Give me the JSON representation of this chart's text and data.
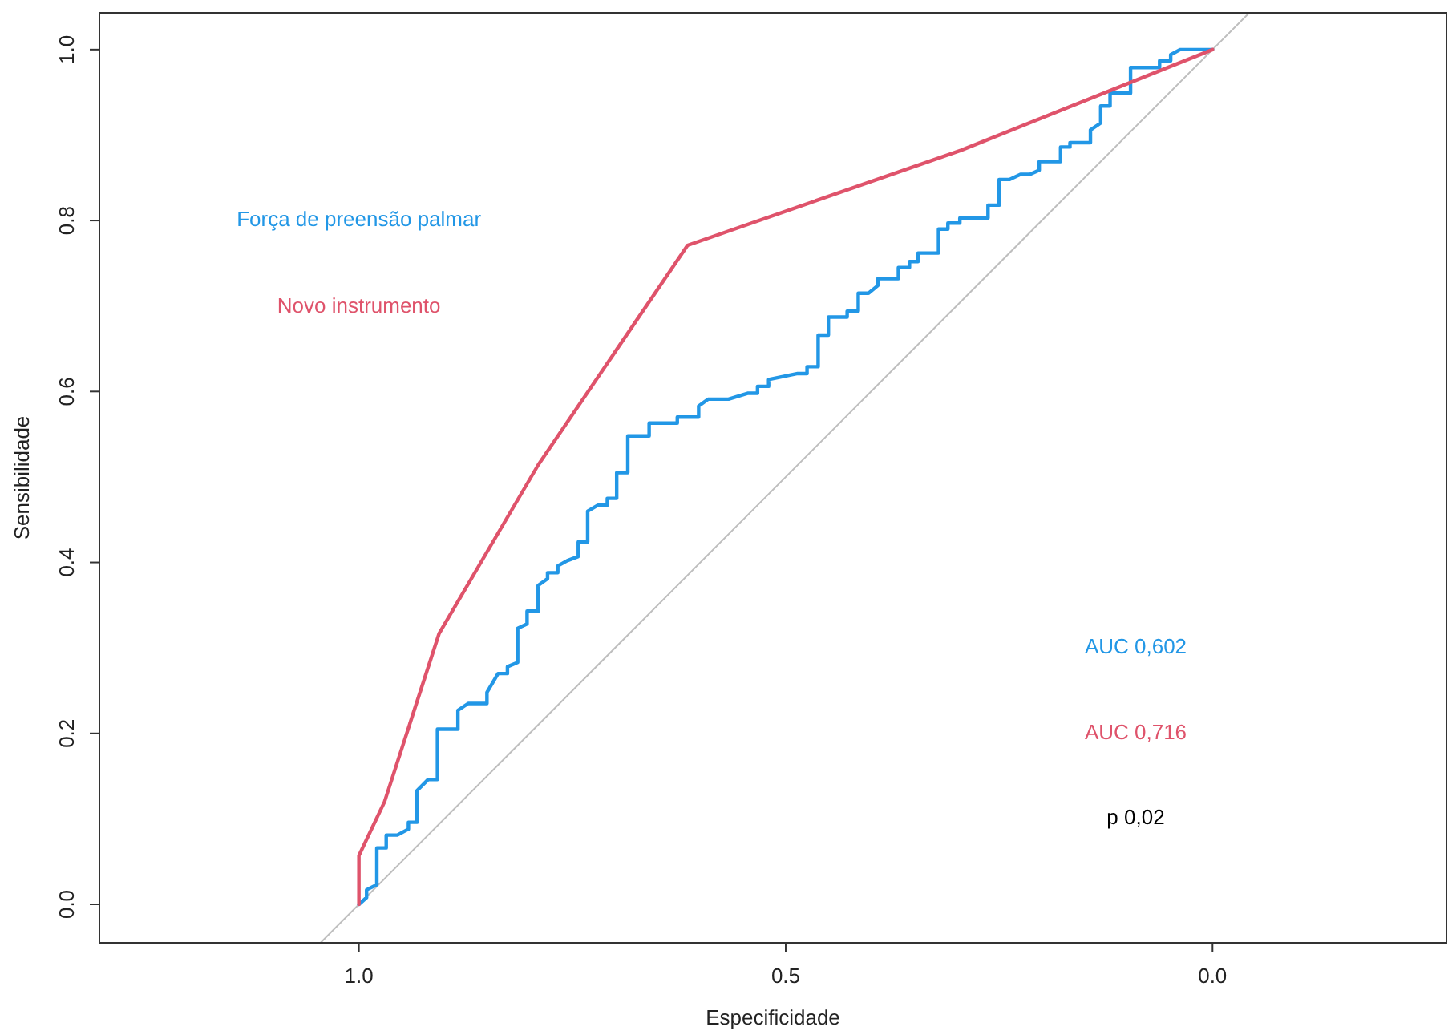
{
  "chart_data": {
    "type": "line",
    "xlabel": "Especificidade",
    "ylabel": "Sensibilidade",
    "xlim": [
      1.304,
      -0.274
    ],
    "ylim": [
      -0.045,
      1.043
    ],
    "xticks": [
      {
        "value": 1,
        "label": "1.0"
      },
      {
        "value": 0.5,
        "label": "0.5"
      },
      {
        "value": 0,
        "label": "0.0"
      }
    ],
    "yticks": [
      {
        "value": 0,
        "label": "0.0"
      },
      {
        "value": 0.2,
        "label": "0.2"
      },
      {
        "value": 0.4,
        "label": "0.4"
      },
      {
        "value": 0.6,
        "label": "0.6"
      },
      {
        "value": 0.8,
        "label": "0.8"
      },
      {
        "value": 1,
        "label": "1.0"
      }
    ],
    "grid": false,
    "legend": "top left",
    "series": [
      {
        "color": "#bebebe",
        "x": [
          1.045,
          -0.043
        ],
        "values": [
          -0.045,
          1.043
        ]
      },
      {
        "name": "Força de preensão palmar",
        "color": "#2297e6",
        "x": [
          1,
          0.991,
          0.991,
          0.979,
          0.979,
          0.968,
          0.968,
          0.955,
          0.942,
          0.942,
          0.932,
          0.932,
          0.919,
          0.908,
          0.908,
          0.884,
          0.884,
          0.872,
          0.85,
          0.85,
          0.837,
          0.826,
          0.826,
          0.814,
          0.814,
          0.803,
          0.803,
          0.79,
          0.79,
          0.779,
          0.779,
          0.767,
          0.767,
          0.756,
          0.743,
          0.743,
          0.732,
          0.732,
          0.72,
          0.709,
          0.709,
          0.698,
          0.698,
          0.685,
          0.685,
          0.66,
          0.66,
          0.627,
          0.627,
          0.602,
          0.602,
          0.591,
          0.567,
          0.544,
          0.533,
          0.533,
          0.52,
          0.52,
          0.486,
          0.475,
          0.475,
          0.462,
          0.462,
          0.45,
          0.45,
          0.428,
          0.428,
          0.415,
          0.415,
          0.403,
          0.392,
          0.392,
          0.368,
          0.368,
          0.355,
          0.355,
          0.345,
          0.345,
          0.321,
          0.321,
          0.31,
          0.31,
          0.296,
          0.296,
          0.263,
          0.263,
          0.25,
          0.25,
          0.238,
          0.225,
          0.214,
          0.203,
          0.203,
          0.178,
          0.178,
          0.167,
          0.167,
          0.143,
          0.143,
          0.131,
          0.131,
          0.12,
          0.12,
          0.096,
          0.096,
          0.062,
          0.062,
          0.049,
          0.049,
          0.038,
          0
        ],
        "values": [
          0,
          0.008,
          0.017,
          0.023,
          0.066,
          0.066,
          0.081,
          0.081,
          0.088,
          0.096,
          0.096,
          0.133,
          0.146,
          0.146,
          0.205,
          0.205,
          0.227,
          0.235,
          0.235,
          0.248,
          0.27,
          0.27,
          0.278,
          0.283,
          0.323,
          0.328,
          0.343,
          0.343,
          0.373,
          0.381,
          0.388,
          0.388,
          0.396,
          0.402,
          0.407,
          0.424,
          0.424,
          0.46,
          0.467,
          0.467,
          0.475,
          0.475,
          0.505,
          0.505,
          0.548,
          0.548,
          0.563,
          0.563,
          0.57,
          0.57,
          0.583,
          0.591,
          0.591,
          0.598,
          0.598,
          0.606,
          0.606,
          0.614,
          0.621,
          0.621,
          0.629,
          0.629,
          0.666,
          0.666,
          0.687,
          0.687,
          0.694,
          0.694,
          0.715,
          0.715,
          0.724,
          0.732,
          0.732,
          0.745,
          0.745,
          0.752,
          0.752,
          0.762,
          0.762,
          0.79,
          0.79,
          0.797,
          0.797,
          0.803,
          0.803,
          0.818,
          0.818,
          0.848,
          0.848,
          0.854,
          0.854,
          0.859,
          0.869,
          0.869,
          0.886,
          0.886,
          0.891,
          0.891,
          0.906,
          0.914,
          0.934,
          0.934,
          0.949,
          0.949,
          0.979,
          0.979,
          0.987,
          0.987,
          0.994,
          1,
          1
        ]
      },
      {
        "name": "Novo instrumento",
        "color": "#df536b",
        "x": [
          1,
          1,
          0.97,
          0.906,
          0.79,
          0.615,
          0.295,
          0
        ],
        "values": [
          0,
          0.057,
          0.12,
          0.317,
          0.514,
          0.771,
          0.882,
          1
        ]
      }
    ],
    "annotations": [
      "AUC 0,602",
      "AUC 0,716",
      "p 0,02"
    ]
  }
}
